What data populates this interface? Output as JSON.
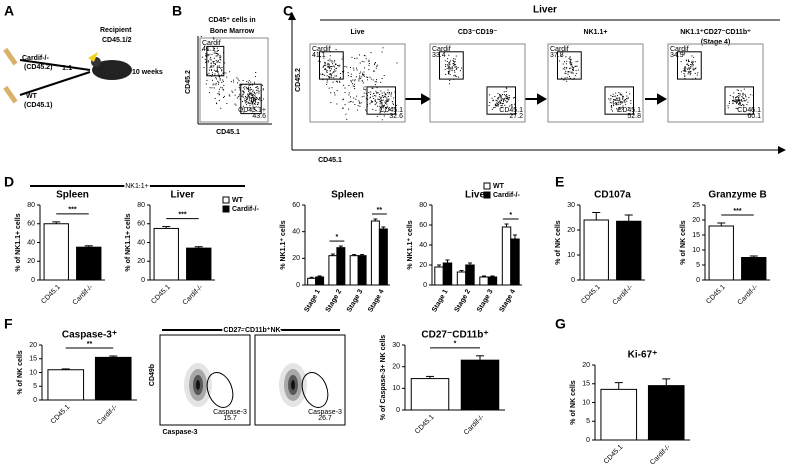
{
  "panels": {
    "labels": [
      "A",
      "B",
      "C",
      "D",
      "E",
      "F",
      "G"
    ],
    "a": {
      "recipient": "Recipient",
      "recipient_type": "CD45.1/2",
      "donor1": "Cardif-/-",
      "donor1_type": "(CD45.2)",
      "ratio": "1:1",
      "donor2": "WT",
      "donor2_type": "(CD45.1)",
      "time": "10 weeks"
    },
    "b": {
      "title": "CD45⁺ cells in",
      "title2": "Bone Marrow",
      "ylabel": "CD45.2",
      "xlabel": "CD45.1",
      "gates": [
        {
          "name": "Cardif",
          "value": 41.1
        },
        {
          "name": "CD45.1+",
          "value": 43.6
        }
      ]
    },
    "c": {
      "title": "Liver",
      "ylabel": "CD45.2",
      "xlabel": "CD45.1",
      "plots": [
        {
          "title": "Live",
          "gates": [
            {
              "name": "Cardif",
              "value": 41.1
            },
            {
              "name": "CD45.1",
              "value": 32.6
            }
          ]
        },
        {
          "title": "CD3⁻CD19⁻",
          "gates": [
            {
              "name": "Cardif",
              "value": 33.4
            },
            {
              "name": "CD45.1",
              "value": 27.2
            }
          ]
        },
        {
          "title": "NK1.1+",
          "gates": [
            {
              "name": "Cardif",
              "value": 37.8
            },
            {
              "name": "CD45.1",
              "value": 52.8
            }
          ]
        },
        {
          "title": "NK1.1⁺CD27⁻CD11b⁺",
          "title2": "(Stage 4)",
          "gates": [
            {
              "name": "Cardif",
              "value": 34.9
            },
            {
              "name": "CD45.1",
              "value": 60.1
            }
          ]
        }
      ]
    },
    "d": {
      "group": "NK1.1+"
    },
    "f": {
      "title": "CD27⁻CD11b⁺NK",
      "ylabel": "CD49b",
      "xlabel": "Caspase-3",
      "plots": [
        {
          "name": "Caspase-3",
          "value": 15.7
        },
        {
          "name": "Caspase-3",
          "value": 26.7
        }
      ]
    }
  },
  "chart_data": [
    {
      "type": "bar",
      "title": "Spleen",
      "ylabel": "% of NK1.1+ cells",
      "categories": [
        "CD45.1",
        "Cardif-/-"
      ],
      "values": [
        60,
        35
      ],
      "errors": [
        2,
        1.5
      ],
      "colors": [
        "#ffffff",
        "#000000"
      ],
      "ylim": [
        0,
        80
      ],
      "yticks": [
        0,
        20,
        40,
        60,
        80
      ],
      "significance": "***"
    },
    {
      "type": "bar",
      "title": "Liver",
      "ylabel": "% of NK1.1+ cells",
      "categories": [
        "CD45.1",
        "Cardif-/-"
      ],
      "values": [
        55,
        34
      ],
      "errors": [
        2,
        1.5
      ],
      "colors": [
        "#ffffff",
        "#000000"
      ],
      "ylim": [
        0,
        80
      ],
      "yticks": [
        0,
        20,
        40,
        60,
        80
      ],
      "significance": "***",
      "legend": [
        "WT",
        "Cardif-/-"
      ]
    },
    {
      "type": "grouped",
      "title": "Spleen",
      "ylabel": "% NK1.1⁺ cells",
      "categories": [
        "Stage 1",
        "Stage 2",
        "Stage 3",
        "Stage 4"
      ],
      "series": [
        {
          "name": "WT",
          "color": "#ffffff",
          "values": [
            5,
            22,
            22,
            48
          ],
          "errors": [
            0.8,
            1.2,
            0.8,
            1.5
          ]
        },
        {
          "name": "Cardif-/-",
          "color": "#000000",
          "values": [
            6,
            28,
            22,
            42
          ],
          "errors": [
            0.8,
            1.2,
            0.8,
            1.5
          ]
        }
      ],
      "ylim": [
        0,
        60
      ],
      "yticks": [
        0,
        20,
        40,
        60
      ],
      "significance": [
        null,
        "*",
        null,
        "**"
      ],
      "legend": false
    },
    {
      "type": "grouped",
      "title": "Liver",
      "ylabel": "% NK1.1⁺ cells",
      "categories": [
        "Stage 1",
        "Stage 2",
        "Stage 3",
        "Stage 4"
      ],
      "series": [
        {
          "name": "WT",
          "color": "#ffffff",
          "values": [
            18,
            13,
            8,
            58
          ],
          "errors": [
            2,
            1.5,
            1,
            3
          ]
        },
        {
          "name": "Cardif-/-",
          "color": "#000000",
          "values": [
            22,
            20,
            8,
            46
          ],
          "errors": [
            3,
            2,
            1,
            4
          ]
        }
      ],
      "ylim": [
        0,
        80
      ],
      "yticks": [
        0,
        20,
        40,
        60,
        80
      ],
      "significance": [
        null,
        null,
        null,
        "*"
      ],
      "legend": true
    },
    {
      "type": "bar",
      "title": "CD107a",
      "ylabel": "% of NK cells",
      "categories": [
        "CD45.1",
        "Cardif-/-"
      ],
      "values": [
        24,
        23.5
      ],
      "errors": [
        3,
        2.5
      ],
      "colors": [
        "#ffffff",
        "#000000"
      ],
      "ylim": [
        0,
        30
      ],
      "yticks": [
        0,
        10,
        20,
        30
      ]
    },
    {
      "type": "bar",
      "title": "Granzyme B",
      "ylabel": "% of NK cells",
      "categories": [
        "CD45.1",
        "Cardif-/-"
      ],
      "values": [
        18,
        7.5
      ],
      "errors": [
        1,
        0.5
      ],
      "colors": [
        "#ffffff",
        "#000000"
      ],
      "ylim": [
        0,
        25
      ],
      "yticks": [
        0,
        5,
        10,
        15,
        20,
        25
      ],
      "significance": "***"
    },
    {
      "type": "bar",
      "title": "Caspase-3⁺",
      "ylabel": "% of NK cells",
      "categories": [
        "CD45.1",
        "Cardif-/-"
      ],
      "values": [
        11,
        15.5
      ],
      "errors": [
        0.3,
        0.5
      ],
      "colors": [
        "#ffffff",
        "#000000"
      ],
      "ylim": [
        0,
        20
      ],
      "yticks": [
        0,
        5,
        10,
        15,
        20
      ],
      "significance": "**"
    },
    {
      "type": "bar",
      "title": "CD27⁻CD11b⁺",
      "ylabel": "% of Caspase-3+ NK cells",
      "categories": [
        "CD45.1",
        "Cardif-/-"
      ],
      "values": [
        14.5,
        23
      ],
      "errors": [
        1,
        2
      ],
      "colors": [
        "#ffffff",
        "#000000"
      ],
      "ylim": [
        0,
        30
      ],
      "yticks": [
        0,
        10,
        20,
        30
      ],
      "significance": "*"
    },
    {
      "type": "bar",
      "title": "Ki-67⁺",
      "ylabel": "% of NK cells",
      "categories": [
        "CD45.1",
        "Cardif-/-"
      ],
      "values": [
        13.5,
        14.5
      ],
      "errors": [
        1.8,
        1.8
      ],
      "colors": [
        "#ffffff",
        "#000000"
      ],
      "ylim": [
        0,
        20
      ],
      "yticks": [
        0,
        5,
        10,
        15,
        20
      ]
    }
  ]
}
